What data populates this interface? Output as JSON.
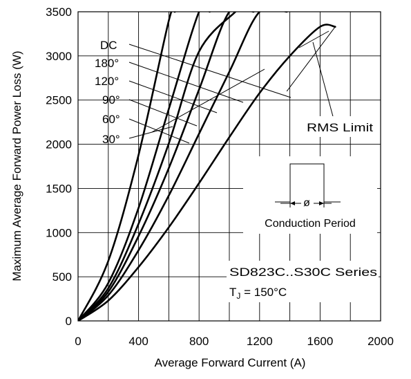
{
  "chart_data": {
    "type": "line",
    "title": "",
    "xlabel": "Average Forward Current (A)",
    "ylabel": "Maximum Average Forward Power Loss (W)",
    "xlim": [
      0,
      2000
    ],
    "ylim": [
      0,
      3500
    ],
    "x_ticks": [
      0,
      400,
      800,
      1200,
      1600,
      2000
    ],
    "y_ticks": [
      0,
      500,
      1000,
      1500,
      2000,
      2500,
      3000,
      3500
    ],
    "grid": true,
    "series": [
      {
        "name": "30°",
        "x": [
          0,
          200,
          400,
          600,
          800,
          1000,
          1200,
          1400,
          1600,
          1700
        ],
        "y": [
          0,
          230,
          610,
          1060,
          1560,
          2080,
          2580,
          3000,
          3330,
          3330
        ]
      },
      {
        "name": "60°",
        "x": [
          0,
          200,
          400,
          600,
          800,
          1000,
          1200,
          1380
        ],
        "y": [
          0,
          290,
          800,
          1420,
          2120,
          2820,
          3500,
          3500
        ]
      },
      {
        "name": "90°",
        "x": [
          0,
          200,
          400,
          600,
          800,
          1000,
          1160
        ],
        "y": [
          0,
          330,
          960,
          1730,
          2620,
          3500,
          3500
        ]
      },
      {
        "name": "120°",
        "x": [
          0,
          200,
          400,
          600,
          800,
          1040
        ],
        "y": [
          0,
          370,
          1100,
          2010,
          3050,
          3500
        ]
      },
      {
        "name": "180°",
        "x": [
          0,
          200,
          400,
          600,
          800,
          870
        ],
        "y": [
          0,
          430,
          1280,
          2400,
          3500,
          3500
        ]
      },
      {
        "name": "DC",
        "x": [
          0,
          200,
          400,
          600,
          640
        ],
        "y": [
          0,
          680,
          1880,
          3400,
          3500
        ]
      }
    ],
    "rms_limit": {
      "x": [
        1380,
        1700
      ],
      "y": [
        2600,
        3330
      ]
    },
    "annotations": {
      "curve_labels": [
        "DC",
        "180°",
        "120°",
        "90°",
        "60°",
        "30°"
      ],
      "rms_limit_label": "RMS Limit",
      "conduction_label": "Conduction Period",
      "phi_symbol": "ø",
      "series_label": "SD823C..S30C Series",
      "tj_label_prefix": "T",
      "tj_label_sub": "J",
      "tj_label_suffix": " = 150°C"
    }
  }
}
